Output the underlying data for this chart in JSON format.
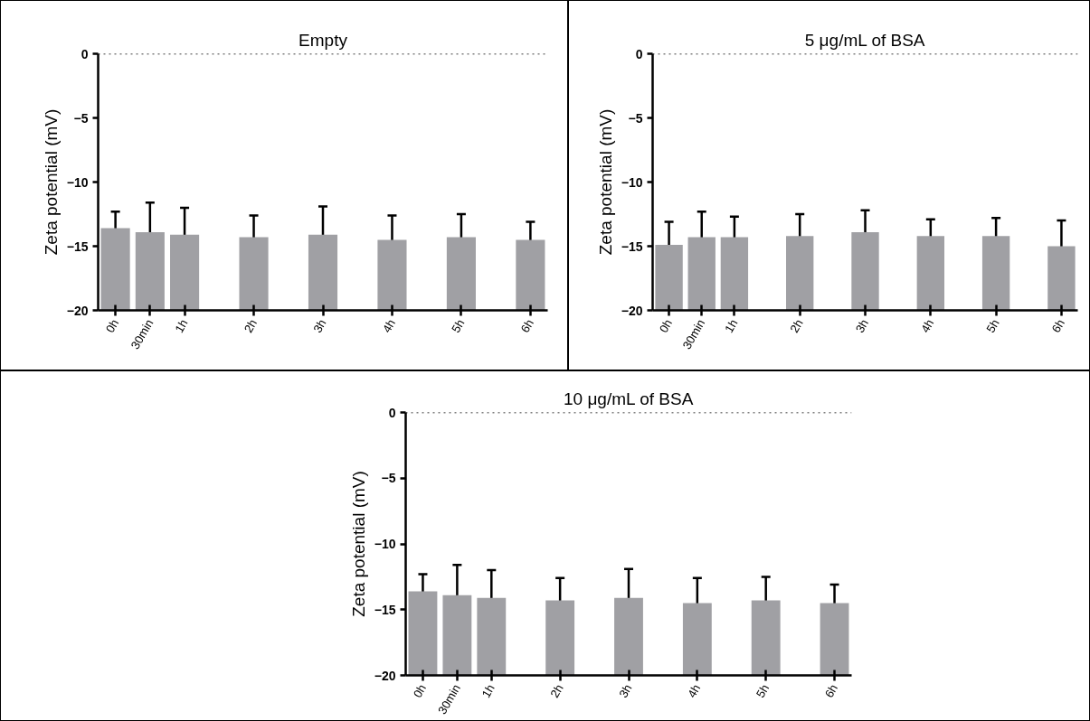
{
  "chart_data": [
    {
      "type": "bar",
      "title": "Empty",
      "ylabel": "Zeta potential (mV)",
      "color": "#a0a0a4",
      "categories": [
        "0h",
        "30min",
        "1h",
        null,
        "2h",
        null,
        "3h",
        null,
        "4h",
        null,
        "5h",
        null,
        "6h"
      ],
      "base": [
        -20,
        -20,
        -20,
        null,
        -20,
        null,
        -20,
        null,
        -20,
        null,
        -20,
        null,
        -20
      ],
      "values": [
        6.4,
        6.1,
        5.9,
        null,
        5.7,
        null,
        5.9,
        null,
        5.5,
        null,
        5.7,
        null,
        5.5
      ],
      "errors": [
        1.3,
        2.3,
        2.1,
        null,
        1.7,
        null,
        2.2,
        null,
        1.9,
        null,
        1.8,
        null,
        1.4
      ],
      "ylim": [
        -20,
        0
      ],
      "yticks": [
        0,
        -5,
        -10,
        -15,
        -20
      ],
      "ref_lines": [
        {
          "axis": "y",
          "value": 0,
          "line_style": "dotted"
        }
      ],
      "grid": false
    },
    {
      "type": "bar",
      "title": "5 μg/mL of BSA",
      "ylabel": "Zeta potential (mV)",
      "color": "#a0a0a4",
      "categories": [
        "0h",
        "30min",
        "1h",
        null,
        "2h",
        null,
        "3h",
        null,
        "4h",
        null,
        "5h",
        null,
        "6h"
      ],
      "base": [
        -20,
        -20,
        -20,
        null,
        -20,
        null,
        -20,
        null,
        -20,
        null,
        -20,
        null,
        -20
      ],
      "values": [
        5.1,
        5.7,
        5.7,
        null,
        5.8,
        null,
        6.1,
        null,
        5.8,
        null,
        5.8,
        null,
        5.0
      ],
      "errors": [
        1.8,
        2.0,
        1.6,
        null,
        1.7,
        null,
        1.7,
        null,
        1.3,
        null,
        1.4,
        null,
        2.0
      ],
      "ylim": [
        -20,
        0
      ],
      "yticks": [
        0,
        -5,
        -10,
        -15,
        -20
      ],
      "ref_lines": [
        {
          "axis": "y",
          "value": 0,
          "line_style": "dotted"
        }
      ],
      "grid": false
    },
    {
      "type": "bar",
      "title": "10 μg/mL of BSA",
      "ylabel": "Zeta potential (mV)",
      "color": "#a0a0a4",
      "categories": [
        "0h",
        "30min",
        "1h",
        null,
        "2h",
        null,
        "3h",
        null,
        "4h",
        null,
        "5h",
        null,
        "6h"
      ],
      "base": [
        -20,
        -20,
        -20,
        null,
        -20,
        null,
        -20,
        null,
        -20,
        null,
        -20,
        null,
        -20
      ],
      "values": [
        6.4,
        6.1,
        5.9,
        null,
        5.7,
        null,
        5.9,
        null,
        5.5,
        null,
        5.7,
        null,
        5.5
      ],
      "errors": [
        1.3,
        2.3,
        2.1,
        null,
        1.7,
        null,
        2.2,
        null,
        1.9,
        null,
        1.8,
        null,
        1.4
      ],
      "ylim": [
        -20,
        0
      ],
      "yticks": [
        0,
        -5,
        -10,
        -15,
        -20
      ],
      "ref_lines": [
        {
          "axis": "y",
          "value": 0,
          "line_style": "dotted"
        }
      ],
      "grid": false
    }
  ]
}
